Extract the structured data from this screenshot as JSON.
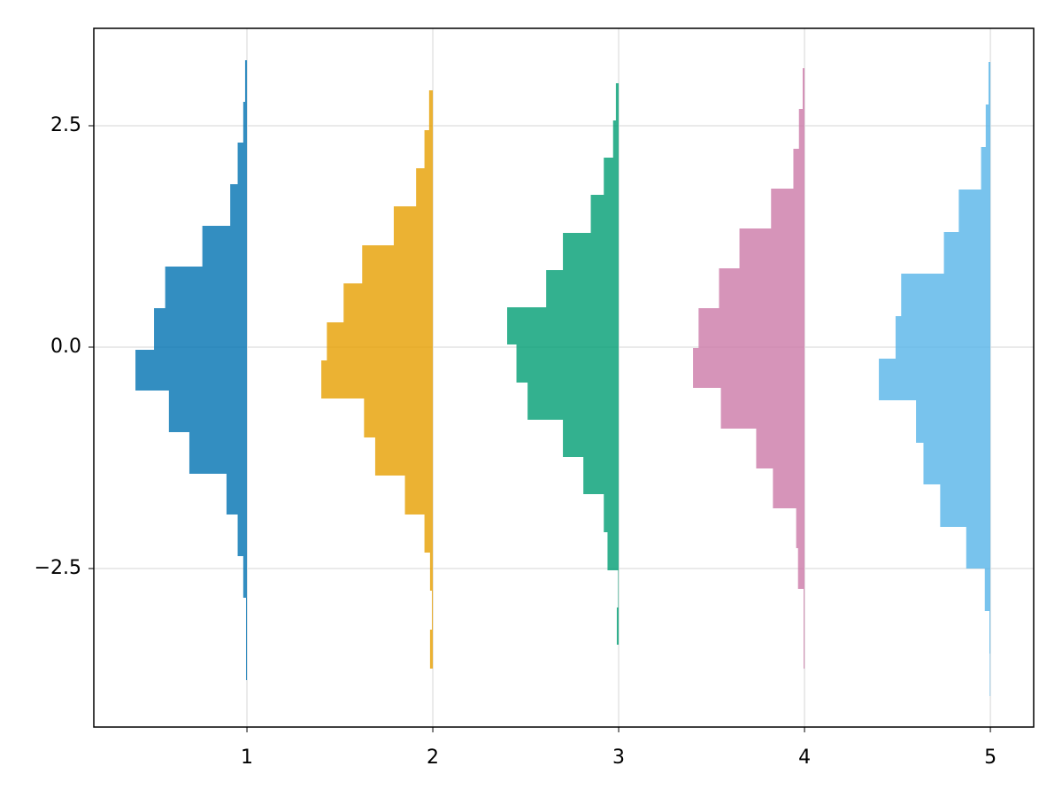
{
  "chart_data": {
    "type": "histogram",
    "orientation": "horizontal",
    "direction": "left",
    "xlim": [
      0.176,
      5.233
    ],
    "ylim": [
      -4.29,
      3.6
    ],
    "xticks": [
      1,
      2,
      3,
      4,
      5
    ],
    "yticks": [
      {
        "value": -2.5,
        "label": "−2.5"
      },
      {
        "value": 0,
        "label": "0.0"
      },
      2.5
    ],
    "grid": true,
    "opacity": 0.8,
    "series": [
      {
        "color": "#0072b2",
        "offset": 1,
        "bins": [
          -3.76,
          -3.29,
          -2.83,
          -2.36,
          -1.89,
          -1.43,
          -0.96,
          -0.49,
          -0.03,
          0.44,
          0.91,
          1.37,
          1.84,
          2.31,
          2.77,
          3.24
        ],
        "values": [
          0.005,
          0.005,
          0.02,
          0.05,
          0.11,
          0.31,
          0.42,
          0.6,
          0.5,
          0.44,
          0.24,
          0.09,
          0.05,
          0.02,
          0.01
        ]
      },
      {
        "color": "#e69f00",
        "offset": 2,
        "bins": [
          -3.63,
          -3.19,
          -2.75,
          -2.32,
          -1.89,
          -1.45,
          -1.02,
          -0.58,
          -0.15,
          0.28,
          0.72,
          1.15,
          1.59,
          2.02,
          2.45,
          2.9
        ],
        "values": [
          0.015,
          0.005,
          0.015,
          0.045,
          0.15,
          0.31,
          0.37,
          0.6,
          0.57,
          0.48,
          0.38,
          0.21,
          0.09,
          0.045,
          0.02
        ]
      },
      {
        "color": "#009e73",
        "offset": 3,
        "bins": [
          -3.36,
          -2.94,
          -2.52,
          -2.09,
          -1.66,
          -1.24,
          -0.82,
          -0.4,
          0.03,
          0.45,
          0.87,
          1.29,
          1.72,
          2.14,
          2.56,
          2.98
        ],
        "values": [
          0.01,
          0.003,
          0.06,
          0.08,
          0.19,
          0.3,
          0.49,
          0.55,
          0.6,
          0.39,
          0.3,
          0.15,
          0.08,
          0.03,
          0.015
        ]
      },
      {
        "color": "#cc79a7",
        "offset": 4,
        "bins": [
          -3.63,
          -3.18,
          -2.73,
          -2.27,
          -1.82,
          -1.37,
          -0.92,
          -0.46,
          -0.01,
          0.44,
          0.89,
          1.34,
          1.79,
          2.24,
          2.69,
          3.15
        ],
        "values": [
          0.005,
          0.005,
          0.035,
          0.045,
          0.17,
          0.26,
          0.45,
          0.6,
          0.57,
          0.46,
          0.35,
          0.18,
          0.06,
          0.03,
          0.01
        ]
      },
      {
        "color": "#56b4e9",
        "offset": 5,
        "bins": [
          -3.94,
          -3.46,
          -2.98,
          -2.5,
          -2.03,
          -1.55,
          -1.08,
          -0.6,
          -0.13,
          0.35,
          0.83,
          1.3,
          1.78,
          2.26,
          2.74,
          3.22
        ],
        "values": [
          0.003,
          0.005,
          0.03,
          0.13,
          0.27,
          0.36,
          0.4,
          0.6,
          0.51,
          0.48,
          0.25,
          0.17,
          0.05,
          0.025,
          0.01
        ]
      }
    ]
  }
}
